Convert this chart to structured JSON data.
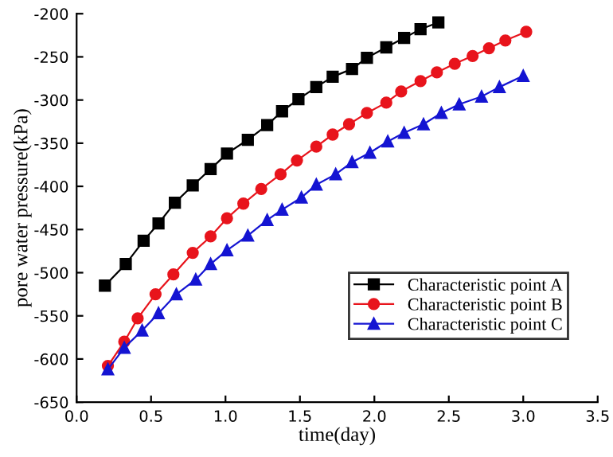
{
  "chart_data": {
    "type": "line",
    "xlabel": "time(day)",
    "ylabel": "pore water pressure(kPa)",
    "xlim": [
      0,
      3.5
    ],
    "xticks": [
      {
        "value": 0,
        "label": "0.0"
      },
      {
        "value": 0.5,
        "label": "0.5"
      },
      {
        "value": 1,
        "label": "1.0"
      },
      {
        "value": 1.5,
        "label": "1.5"
      },
      {
        "value": 2,
        "label": "2.0"
      },
      {
        "value": 2.5,
        "label": "2.5"
      },
      {
        "value": 3,
        "label": "3.0"
      },
      {
        "value": 3.5,
        "label": "3.5"
      }
    ],
    "ylim": [
      -650,
      -200
    ],
    "yticks": [
      -650,
      -600,
      -550,
      -500,
      -450,
      -400,
      -350,
      -300,
      -250,
      -200
    ],
    "legend": "bottom right",
    "grid": false,
    "series": [
      {
        "name": "Characteristic point A",
        "color": "#000000",
        "marker": "square",
        "x": [
          0.19,
          0.33,
          0.45,
          0.55,
          0.66,
          0.78,
          0.9,
          1.01,
          1.15,
          1.28,
          1.38,
          1.49,
          1.61,
          1.72,
          1.85,
          1.95,
          2.08,
          2.2,
          2.31,
          2.43
        ],
        "values": [
          -515,
          -490,
          -463,
          -443,
          -419,
          -399,
          -380,
          -362,
          -346,
          -329,
          -313,
          -299,
          -285,
          -273,
          -264,
          -251,
          -239,
          -228,
          -218,
          -210
        ]
      },
      {
        "name": "Characteristic point B",
        "color": "#e8141c",
        "marker": "circle",
        "x": [
          0.21,
          0.32,
          0.41,
          0.53,
          0.65,
          0.78,
          0.9,
          1.01,
          1.12,
          1.24,
          1.37,
          1.48,
          1.61,
          1.72,
          1.83,
          1.95,
          2.08,
          2.18,
          2.31,
          2.42,
          2.54,
          2.66,
          2.77,
          2.88,
          3.02
        ],
        "values": [
          -608,
          -580,
          -553,
          -525,
          -502,
          -477,
          -458,
          -437,
          -420,
          -403,
          -386,
          -370,
          -354,
          -340,
          -328,
          -315,
          -303,
          -290,
          -278,
          -268,
          -258,
          -249,
          -240,
          -231,
          -221
        ]
      },
      {
        "name": "Characteristic point C",
        "color": "#1414d2",
        "marker": "triangle",
        "x": [
          0.21,
          0.32,
          0.44,
          0.55,
          0.67,
          0.8,
          0.9,
          1.01,
          1.15,
          1.28,
          1.38,
          1.51,
          1.61,
          1.74,
          1.85,
          1.97,
          2.09,
          2.2,
          2.33,
          2.45,
          2.57,
          2.72,
          2.84,
          3.0
        ],
        "values": [
          -612,
          -587,
          -567,
          -547,
          -525,
          -508,
          -490,
          -474,
          -457,
          -439,
          -427,
          -413,
          -398,
          -386,
          -372,
          -361,
          -348,
          -338,
          -328,
          -315,
          -305,
          -296,
          -285,
          -272
        ]
      }
    ]
  }
}
